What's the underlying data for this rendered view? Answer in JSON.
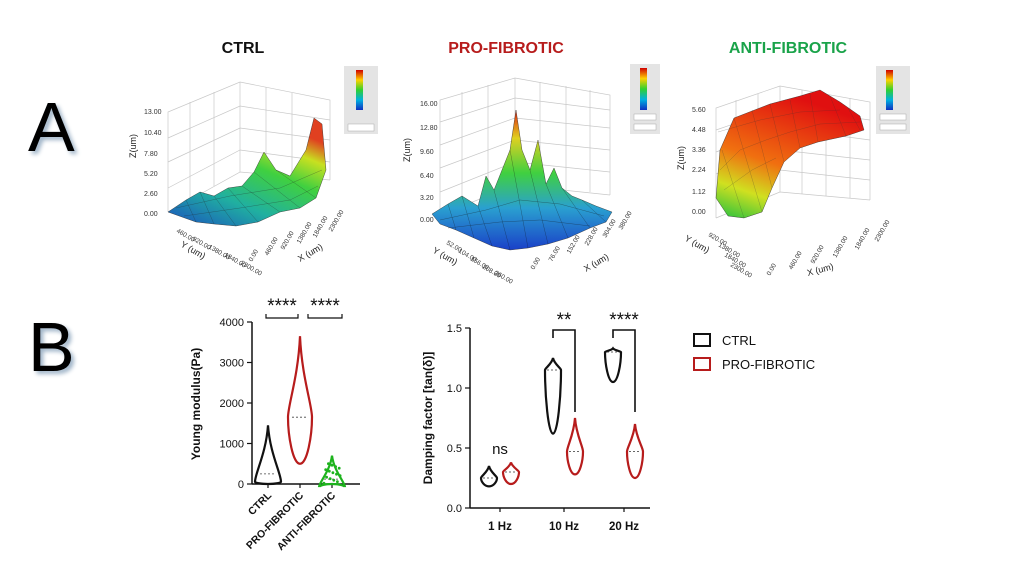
{
  "panels": {
    "a": "A",
    "b": "B"
  },
  "surfaces": [
    {
      "title": "CTRL",
      "title_color": "#111111",
      "zlabel": "Z(um)",
      "zticks": [
        "13.00",
        "10.40",
        "7.80",
        "5.20",
        "2.60",
        "0.00"
      ],
      "ylabel": "Y (um)",
      "yticks": [
        "460.00",
        "920.00",
        "1380.00",
        "1840.00",
        "2300.00"
      ],
      "xlabel": "X (um)",
      "xticks": [
        "0.00",
        "460.00",
        "920.00",
        "1380.00",
        "1840.00",
        "2300.00"
      ]
    },
    {
      "title": "PRO-FIBROTIC",
      "title_color": "#b71c1c",
      "zlabel": "Z(um)",
      "zticks": [
        "16.00",
        "12.80",
        "9.60",
        "6.40",
        "3.20",
        "0.00"
      ],
      "ylabel": "Y (um)",
      "yticks": [
        "52.00",
        "104.00",
        "156.00",
        "208.00",
        "260.00"
      ],
      "xlabel": "X (um)",
      "xticks": [
        "0.00",
        "76.00",
        "152.00",
        "228.00",
        "304.00",
        "380.00"
      ]
    },
    {
      "title": "ANTI-FIBROTIC",
      "title_color": "#1aa34a",
      "zlabel": "Z(um)",
      "zticks": [
        "5.60",
        "4.48",
        "3.36",
        "2.24",
        "1.12",
        "0.00"
      ],
      "ylabel": "Y (um)",
      "yticks": [
        "920.00",
        "1380.00",
        "1840.00",
        "2300.00"
      ],
      "xlabel": "X (um)",
      "xticks": [
        "0.00",
        "460.00",
        "920.00",
        "1380.00",
        "1840.00",
        "2300.00"
      ]
    }
  ],
  "chart_data": [
    {
      "type": "violin",
      "ylabel": "Young modulus(Pa)",
      "ylim": [
        0,
        4000
      ],
      "yticks": [
        "0",
        "1000",
        "2000",
        "3000",
        "4000"
      ],
      "categories": [
        "CTRL",
        "PRO-FIBROTIC",
        "ANTI-FIBROTIC"
      ],
      "colors": [
        "#111111",
        "#b71c1c",
        "#1db31d"
      ],
      "median": [
        250,
        1650,
        120
      ],
      "min": [
        0,
        500,
        0
      ],
      "max": [
        1450,
        3650,
        700
      ],
      "significance": [
        {
          "label": "****",
          "from": "CTRL",
          "to": "PRO-FIBROTIC"
        },
        {
          "label": "****",
          "from": "PRO-FIBROTIC",
          "to": "ANTI-FIBROTIC"
        }
      ]
    },
    {
      "type": "violin",
      "ylabel": "Damping factor [tan(δ)]",
      "ylim": [
        0,
        1.5
      ],
      "yticks": [
        "0.0",
        "0.5",
        "1.0",
        "1.5"
      ],
      "categories": [
        "1 Hz",
        "10 Hz",
        "20 Hz"
      ],
      "series": [
        {
          "name": "CTRL",
          "color": "#111111",
          "median": [
            0.25,
            1.15,
            1.3
          ],
          "min": [
            0.18,
            0.62,
            1.05
          ],
          "max": [
            0.35,
            1.25,
            1.33
          ]
        },
        {
          "name": "PRO-FIBROTIC",
          "color": "#b71c1c",
          "median": [
            0.3,
            0.47,
            0.47
          ],
          "min": [
            0.2,
            0.28,
            0.25
          ],
          "max": [
            0.38,
            0.75,
            0.7
          ]
        }
      ],
      "significance": [
        "ns",
        "**",
        "****"
      ]
    }
  ]
}
